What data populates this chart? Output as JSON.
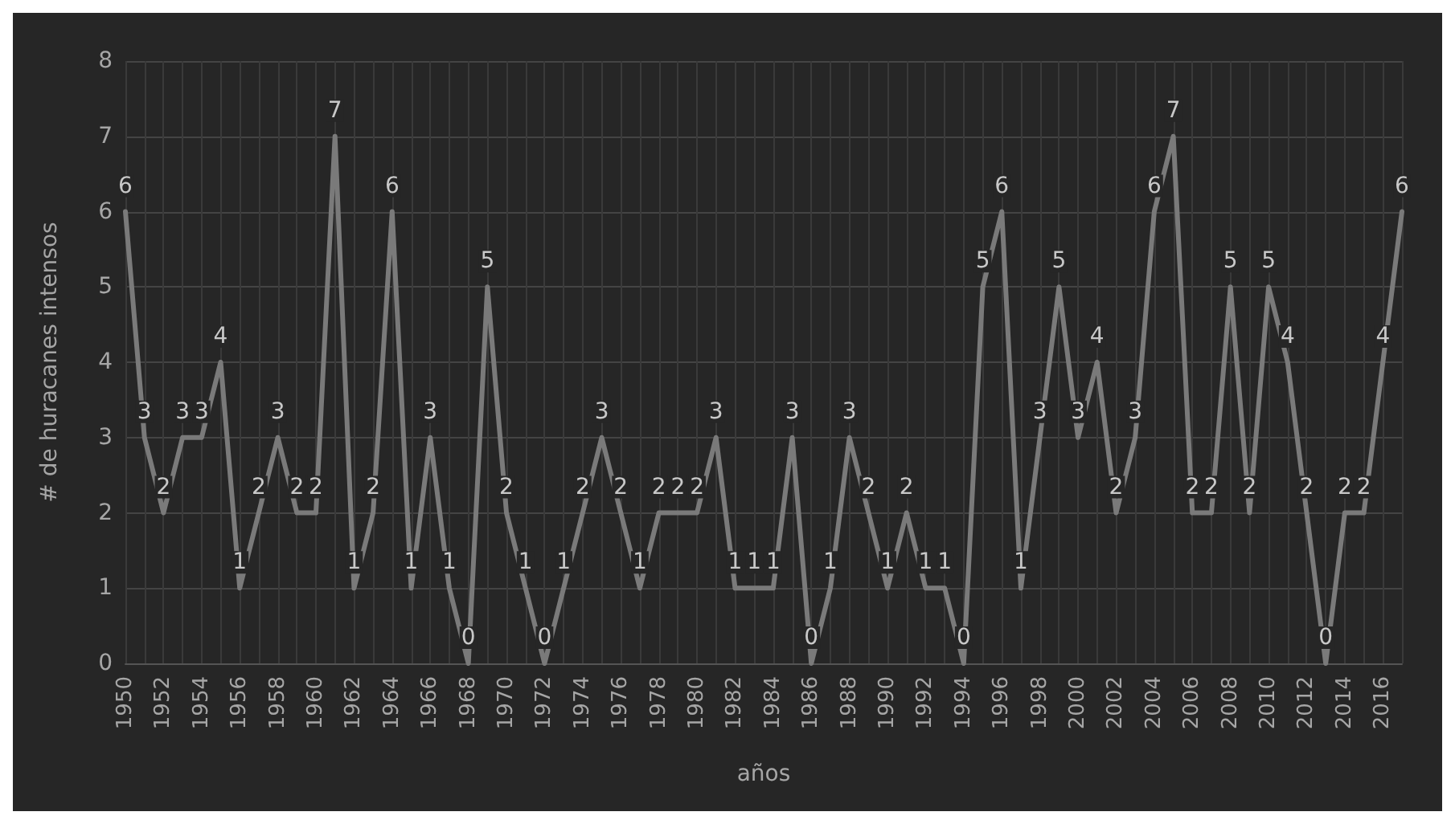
{
  "chart_data": {
    "type": "line",
    "xlabel": "años",
    "ylabel": "# de huracanes intensos",
    "categories": [
      "1950",
      null,
      "1952",
      null,
      "1954",
      null,
      "1956",
      null,
      "1958",
      null,
      "1960",
      null,
      "1962",
      null,
      "1964",
      null,
      "1966",
      null,
      "1968",
      null,
      "1970",
      null,
      "1972",
      null,
      "1974",
      null,
      "1976",
      null,
      "1978",
      null,
      "1980",
      null,
      "1982",
      null,
      "1984",
      null,
      "1986",
      null,
      "1988",
      null,
      "1990",
      null,
      "1992",
      null,
      "1994",
      null,
      "1996",
      null,
      "1998",
      null,
      "2000",
      null,
      "2002",
      null,
      "2004",
      null,
      "2006",
      null,
      "2008",
      null,
      "2010",
      null,
      "2012",
      null,
      "2014",
      null,
      "2016",
      null
    ],
    "series": [
      {
        "color": "#7a7a7a",
        "values": [
          6,
          3,
          2,
          3,
          3,
          4,
          1,
          2,
          3,
          2,
          2,
          7,
          1,
          2,
          6,
          1,
          3,
          1,
          0,
          5,
          2,
          1,
          0,
          1,
          2,
          3,
          2,
          1,
          2,
          2,
          2,
          3,
          1,
          1,
          1,
          3,
          0,
          1,
          3,
          2,
          1,
          2,
          1,
          1,
          0,
          5,
          6,
          1,
          3,
          5,
          3,
          4,
          2,
          3,
          6,
          7,
          2,
          2,
          5,
          2,
          5,
          4,
          2,
          0,
          2,
          2,
          4,
          6
        ]
      }
    ],
    "ylim": [
      0,
      8
    ],
    "yticks": [
      0,
      1,
      2,
      3,
      4,
      5,
      6,
      7,
      8
    ],
    "grid": true,
    "data_labels": true,
    "marker": "none",
    "line_style": "solid"
  }
}
